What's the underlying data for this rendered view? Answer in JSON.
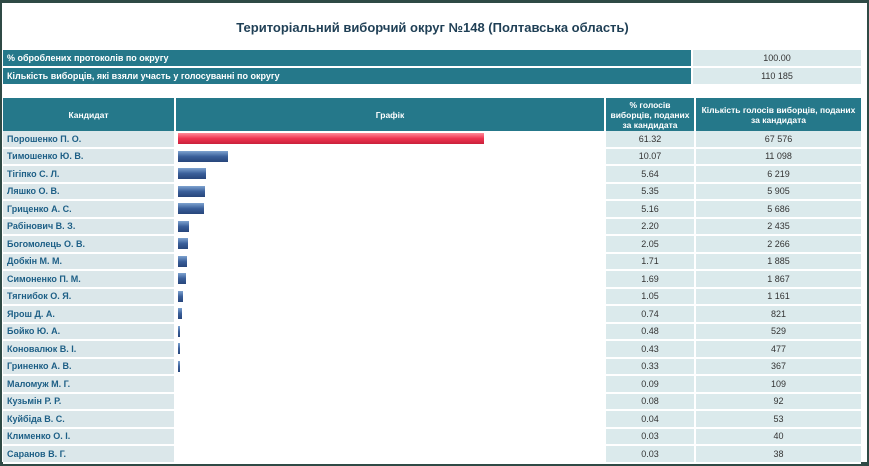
{
  "title": "Територіальний виборчий округ №148 (Полтавська область)",
  "summary": [
    {
      "label": "% оброблених протоколів по округу",
      "value": "100.00"
    },
    {
      "label": "Кількість виборців, які взяли участь у голосуванні по округу",
      "value": "110 185"
    }
  ],
  "headers": {
    "candidate": "Кандидат",
    "chart": "Графік",
    "percent": "% голосів виборців, поданих за кандидата",
    "votes": "Кількість голосів виборців, поданих за кандидата"
  },
  "colors": {
    "header_bg": "#25788a",
    "top_bar": "#ee3350",
    "bar": "#3a5f9a"
  },
  "chart_data": {
    "type": "bar",
    "categories": [
      "Порошенко П. О.",
      "Тимошенко Ю. В.",
      "Тігіпко С. Л.",
      "Ляшко О. В.",
      "Гриценко А. С.",
      "Рабінович В. З.",
      "Богомолець О. В.",
      "Добкін М. М.",
      "Симоненко П. М.",
      "Тягнибок О. Я.",
      "Ярош Д. А.",
      "Бойко Ю. А.",
      "Коновалюк В. І.",
      "Гриненко А. В.",
      "Маломуж М. Г.",
      "Кузьмін Р. Р.",
      "Куйбіда В. С.",
      "Клименко О. І.",
      "Саранов В. Г."
    ],
    "values": [
      61.32,
      10.07,
      5.64,
      5.35,
      5.16,
      2.2,
      2.05,
      1.71,
      1.69,
      1.05,
      0.74,
      0.48,
      0.43,
      0.33,
      0.09,
      0.08,
      0.04,
      0.03,
      0.03
    ],
    "ylim": [
      0,
      100
    ]
  },
  "rows": [
    {
      "name": "Порошенко П. О.",
      "pct": "61.32",
      "votes": "67 576"
    },
    {
      "name": "Тимошенко Ю. В.",
      "pct": "10.07",
      "votes": "11 098"
    },
    {
      "name": "Тігіпко С. Л.",
      "pct": "5.64",
      "votes": "6 219"
    },
    {
      "name": "Ляшко О. В.",
      "pct": "5.35",
      "votes": "5 905"
    },
    {
      "name": "Гриценко А. С.",
      "pct": "5.16",
      "votes": "5 686"
    },
    {
      "name": "Рабінович В. З.",
      "pct": "2.20",
      "votes": "2 435"
    },
    {
      "name": "Богомолець О. В.",
      "pct": "2.05",
      "votes": "2 266"
    },
    {
      "name": "Добкін М. М.",
      "pct": "1.71",
      "votes": "1 885"
    },
    {
      "name": "Симоненко П. М.",
      "pct": "1.69",
      "votes": "1 867"
    },
    {
      "name": "Тягнибок О. Я.",
      "pct": "1.05",
      "votes": "1 161"
    },
    {
      "name": "Ярош Д. А.",
      "pct": "0.74",
      "votes": "821"
    },
    {
      "name": "Бойко Ю. А.",
      "pct": "0.48",
      "votes": "529"
    },
    {
      "name": "Коновалюк В. І.",
      "pct": "0.43",
      "votes": "477"
    },
    {
      "name": "Гриненко А. В.",
      "pct": "0.33",
      "votes": "367"
    },
    {
      "name": "Маломуж М. Г.",
      "pct": "0.09",
      "votes": "109"
    },
    {
      "name": "Кузьмін Р. Р.",
      "pct": "0.08",
      "votes": "92"
    },
    {
      "name": "Куйбіда В. С.",
      "pct": "0.04",
      "votes": "53"
    },
    {
      "name": "Клименко О. І.",
      "pct": "0.03",
      "votes": "40"
    },
    {
      "name": "Саранов В. Г.",
      "pct": "0.03",
      "votes": "38"
    }
  ]
}
